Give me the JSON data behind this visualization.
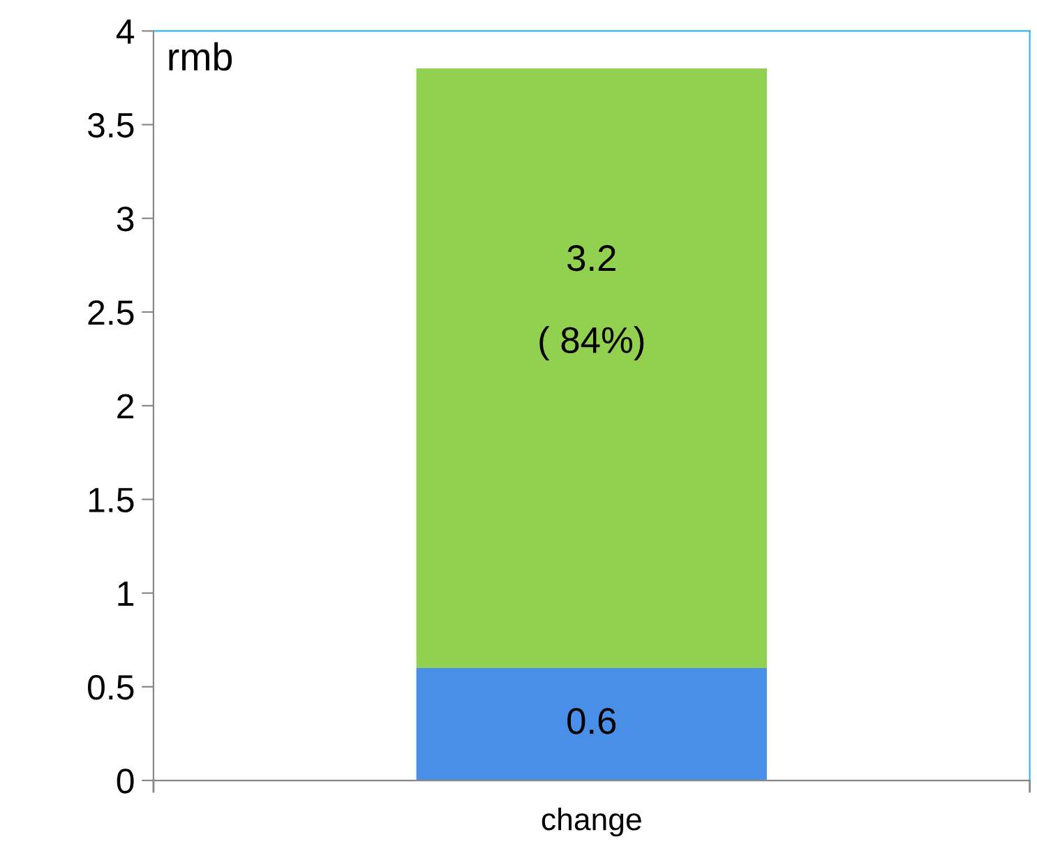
{
  "chart_data": {
    "type": "bar",
    "stacked": true,
    "ylabel": "rmb",
    "categories": [
      "change"
    ],
    "series": [
      {
        "color": "#4a8fe7",
        "values": [
          0.6
        ],
        "value_labels": [
          "0.6"
        ]
      },
      {
        "color": "#92d050",
        "values": [
          3.2
        ],
        "value_labels": [
          "3.2\n\n( 84%)"
        ]
      }
    ],
    "ylim": [
      0,
      4
    ],
    "yticks": [
      0,
      0.5,
      1,
      1.5,
      2,
      2.5,
      3,
      3.5,
      4
    ],
    "grid": false,
    "legend": false
  }
}
